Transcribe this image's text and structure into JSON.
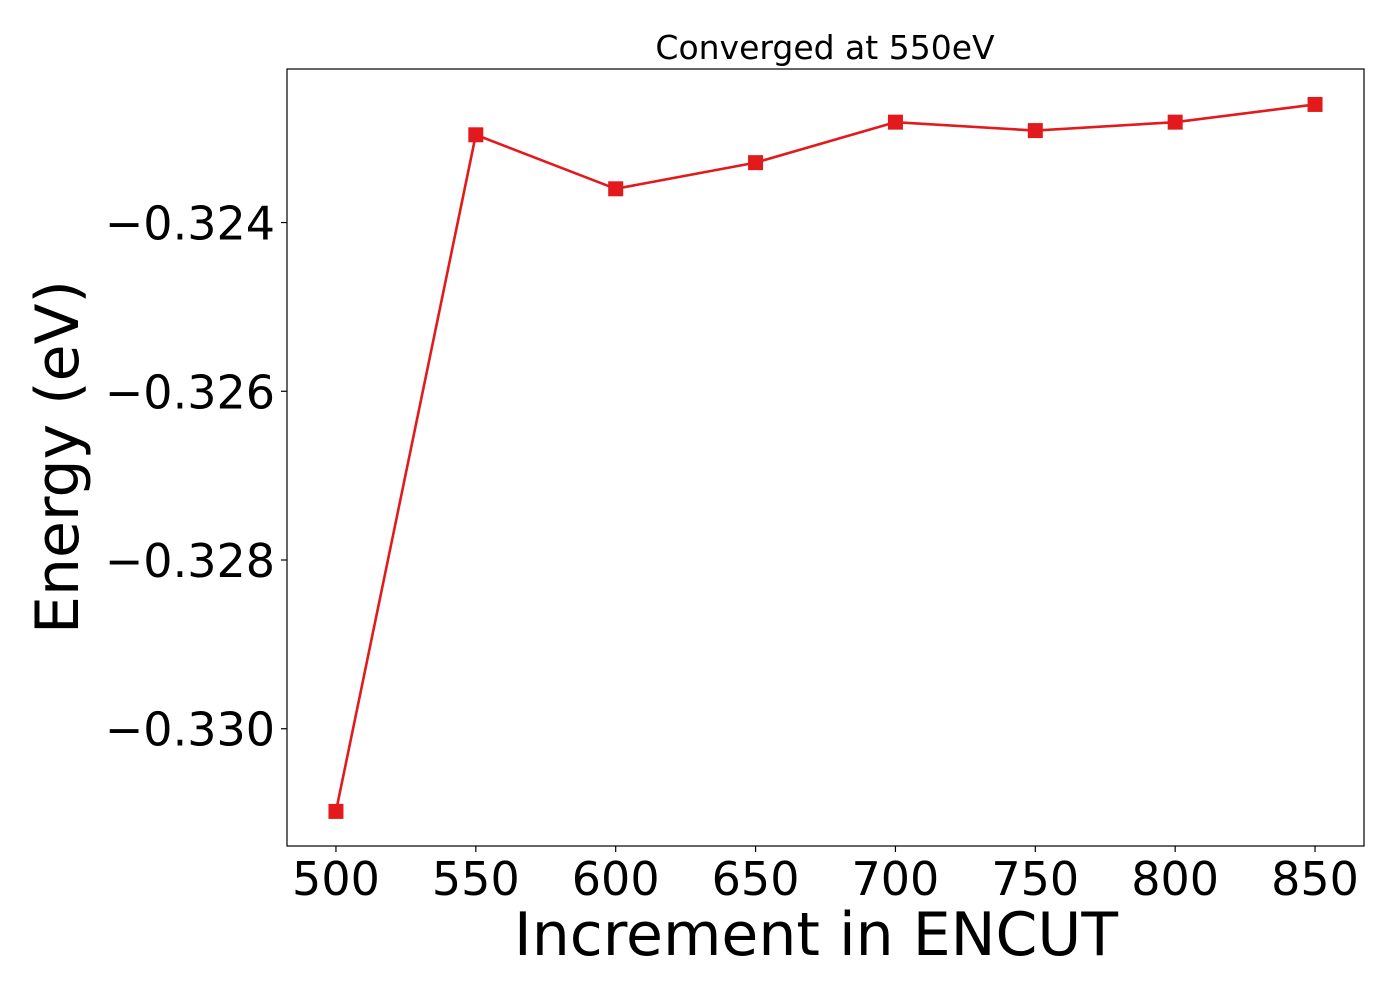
{
  "chart_data": {
    "type": "line",
    "title": "Converged at 550eV",
    "xlabel": "Increment in ENCUT",
    "ylabel": "Energy (eV)",
    "x": [
      500,
      550,
      600,
      650,
      700,
      750,
      800,
      850
    ],
    "series": [
      {
        "values": [
          -0.33098,
          -0.32296,
          -0.3236,
          -0.32329,
          -0.32281,
          -0.32291,
          -0.32281,
          -0.3226
        ],
        "color": "#e31a1c",
        "marker": "square"
      }
    ],
    "xticks": [
      "500",
      "550",
      "600",
      "650",
      "700",
      "750",
      "800",
      "850"
    ],
    "yticks": [
      -0.324,
      -0.326,
      -0.328,
      -0.33
    ],
    "yticklabels": [
      "−0.324",
      "−0.326",
      "−0.328",
      "−0.330"
    ],
    "xlim": [
      482.5,
      867.5
    ],
    "ylim": [
      -0.33139,
      -0.32218
    ],
    "grid": false,
    "legend": "none"
  }
}
